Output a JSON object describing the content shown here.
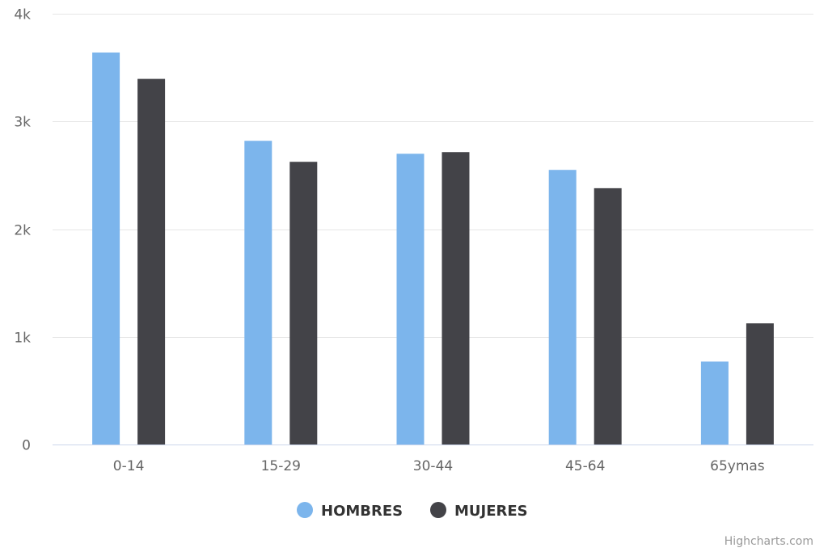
{
  "chart_data": {
    "type": "bar",
    "categories": [
      "0-14",
      "15-29",
      "30-44",
      "45-64",
      "65ymas"
    ],
    "series": [
      {
        "name": "HOMBRES",
        "color": "#7cb5ec",
        "values": [
          3640,
          2820,
          2700,
          2550,
          770
        ]
      },
      {
        "name": "MUJERES",
        "color": "#434348",
        "values": [
          3395,
          2625,
          2715,
          2380,
          1125
        ]
      }
    ],
    "y_ticks": [
      "0",
      "1k",
      "2k",
      "3k",
      "4k"
    ],
    "ylim": [
      0,
      4000
    ],
    "grid": true,
    "legend_position": "bottom-center"
  },
  "credits": "Highcharts.com"
}
